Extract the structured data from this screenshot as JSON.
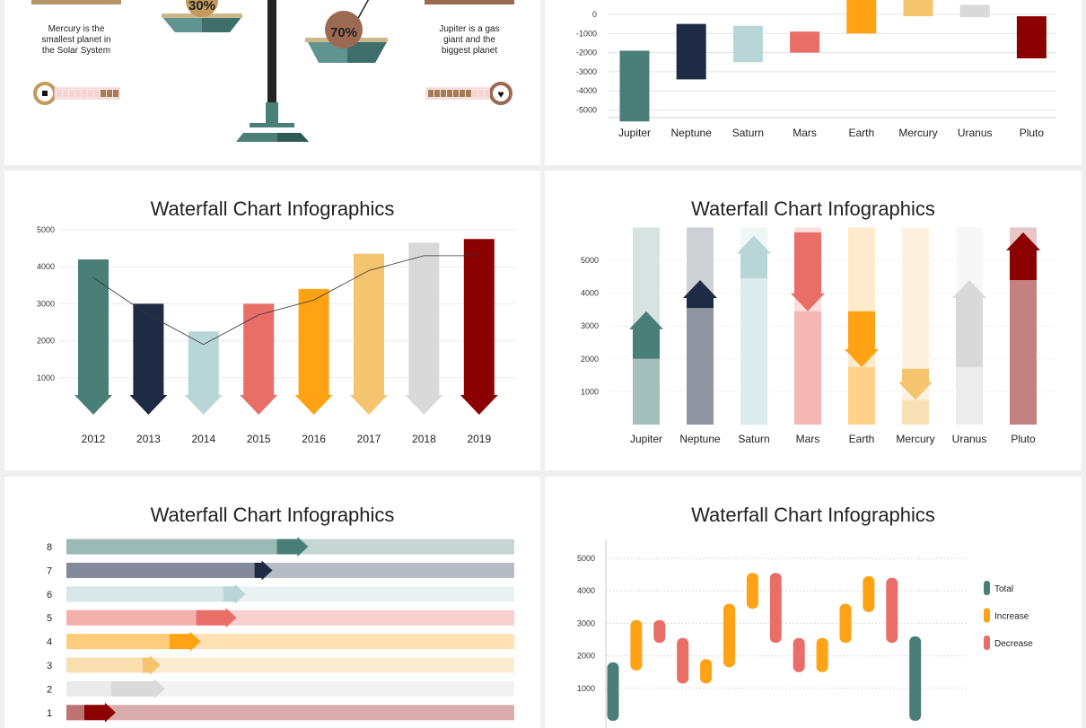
{
  "colors": {
    "teal": "#4a7f78",
    "navy": "#1f2b45",
    "lightblue": "#b8d6d6",
    "salmon": "#ea6e68",
    "orange": "#ffa214",
    "gold": "#f4c46f",
    "grey": "#d9d9d9",
    "darkred": "#8b0000",
    "tan": "#b59467",
    "brown": "#9c6a53"
  },
  "scale_panel": {
    "left_percent": "30%",
    "right_percent": "70%",
    "left_text": [
      "Mercury is the",
      "smallest planet in",
      "the Solar System"
    ],
    "right_text": [
      "Jupiter is a gas",
      "giant and the",
      "biggest planet"
    ],
    "left_level": 0.3,
    "right_level": 0.7
  },
  "chart_data": [
    {
      "type": "bar",
      "title": "",
      "categories": [
        "Jupiter",
        "Neptune",
        "Saturn",
        "Mars",
        "Earth",
        "Mercury",
        "Uranus",
        "Pluto"
      ],
      "series": [
        {
          "values": [
            [
              -1900,
              -5600
            ],
            [
              -500,
              -3400
            ],
            [
              -600,
              -2500
            ],
            [
              -900,
              -2000
            ],
            [
              1200,
              -1000
            ],
            [
              900,
              -100
            ],
            [
              500,
              -150
            ],
            [
              -100,
              -2300
            ]
          ]
        }
      ],
      "y_ticks": [
        0,
        -1000,
        -2000,
        -3000,
        -4000,
        -5000
      ]
    },
    {
      "type": "bar",
      "title": "Waterfall Chart Infographics",
      "categories": [
        "2012",
        "2013",
        "2014",
        "2015",
        "2016",
        "2017",
        "2018",
        "2019"
      ],
      "values": [
        4200,
        3000,
        2250,
        3000,
        3400,
        4350,
        4650,
        4750
      ],
      "line_values": [
        3700,
        2700,
        1900,
        2700,
        3100,
        3900,
        4300,
        4300
      ],
      "y_ticks": [
        1000,
        2000,
        3000,
        4000,
        5000
      ]
    },
    {
      "type": "bar",
      "title": "Waterfall Chart Infographics",
      "categories": [
        "Jupiter",
        "Neptune",
        "Saturn",
        "Mars",
        "Earth",
        "Mercury",
        "Uranus",
        "Pluto"
      ],
      "series": [
        {
          "name": "base",
          "values": [
            2000,
            3550,
            4450,
            5850,
            3450,
            1700,
            1750,
            4400
          ]
        },
        {
          "name": "step",
          "values": [
            3450,
            4400,
            5750,
            3450,
            1750,
            750,
            4400,
            5850
          ]
        }
      ],
      "y_ticks": [
        1000,
        2000,
        3000,
        4000,
        5000
      ]
    },
    {
      "type": "bar",
      "title": "Waterfall Chart Infographics",
      "categories": [
        "8",
        "7",
        "6",
        "5",
        "4",
        "3",
        "2",
        "1"
      ],
      "series": [
        {
          "name": "start",
          "values": [
            0.47,
            0.42,
            0.35,
            0.29,
            0.23,
            0.17,
            0.1,
            0.04
          ]
        },
        {
          "name": "end",
          "values": [
            0.54,
            0.46,
            0.4,
            0.38,
            0.3,
            0.21,
            0.22,
            0.11
          ]
        }
      ]
    },
    {
      "type": "bar",
      "title": "Waterfall Chart Infographics",
      "legend": [
        "Total",
        "Increase",
        "Decrease"
      ],
      "series": [
        {
          "values": [
            [
              0,
              1800
            ],
            [
              1550,
              3100
            ],
            [
              2400,
              3100
            ],
            [
              1150,
              2550
            ],
            [
              1150,
              1900
            ],
            [
              1650,
              3600
            ],
            [
              3450,
              4550
            ],
            [
              2400,
              4550
            ],
            [
              1500,
              2550
            ],
            [
              1500,
              2550
            ],
            [
              2400,
              3600
            ],
            [
              3350,
              4450
            ],
            [
              2400,
              4400
            ],
            [
              0,
              2600
            ]
          ]
        }
      ],
      "kinds": [
        "Total",
        "Increase",
        "Decrease",
        "Decrease",
        "Increase",
        "Increase",
        "Increase",
        "Decrease",
        "Decrease",
        "Increase",
        "Increase",
        "Increase",
        "Decrease",
        "Total"
      ],
      "y_ticks": [
        1000,
        2000,
        3000,
        4000,
        5000
      ]
    }
  ]
}
